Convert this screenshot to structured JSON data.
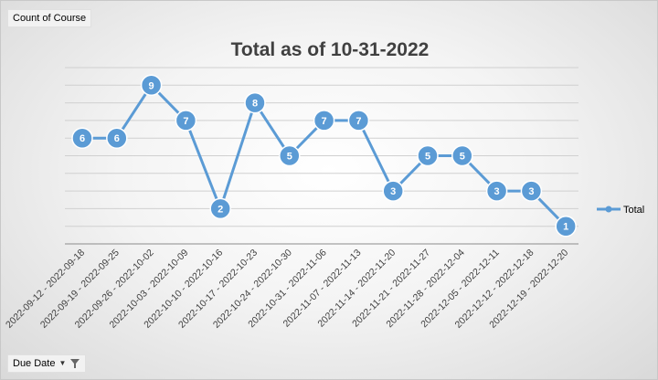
{
  "field_buttons": {
    "value_field": "Count of Course",
    "axis_field": "Due Date"
  },
  "icons": {
    "dropdown": "chevron-down-icon",
    "filter": "filter-icon"
  },
  "colors": {
    "series": "#5b9bd5",
    "grid": "#d0d0d0"
  },
  "chart_data": {
    "type": "line",
    "title": "Total as of 10-31-2022",
    "categories": [
      "2022-09-12 - 2022-09-18",
      "2022-09-19 - 2022-09-25",
      "2022-09-26 - 2022-10-02",
      "2022-10-03 - 2022-10-09",
      "2022-10-10 - 2022-10-16",
      "2022-10-17 - 2022-10-23",
      "2022-10-24 - 2022-10-30",
      "2022-10-31 - 2022-11-06",
      "2022-11-07 - 2022-11-13",
      "2022-11-14 - 2022-11-20",
      "2022-11-21 - 2022-11-27",
      "2022-11-28 - 2022-12-04",
      "2022-12-05 - 2022-12-11",
      "2022-12-12 - 2022-12-18",
      "2022-12-19 - 2022-12-20"
    ],
    "series": [
      {
        "name": "Total",
        "values": [
          6,
          6,
          9,
          7,
          2,
          8,
          5,
          7,
          7,
          3,
          5,
          5,
          3,
          3,
          1
        ]
      }
    ],
    "ylim": [
      0,
      10
    ],
    "grid": true,
    "legend": "right",
    "data_labels": true
  }
}
